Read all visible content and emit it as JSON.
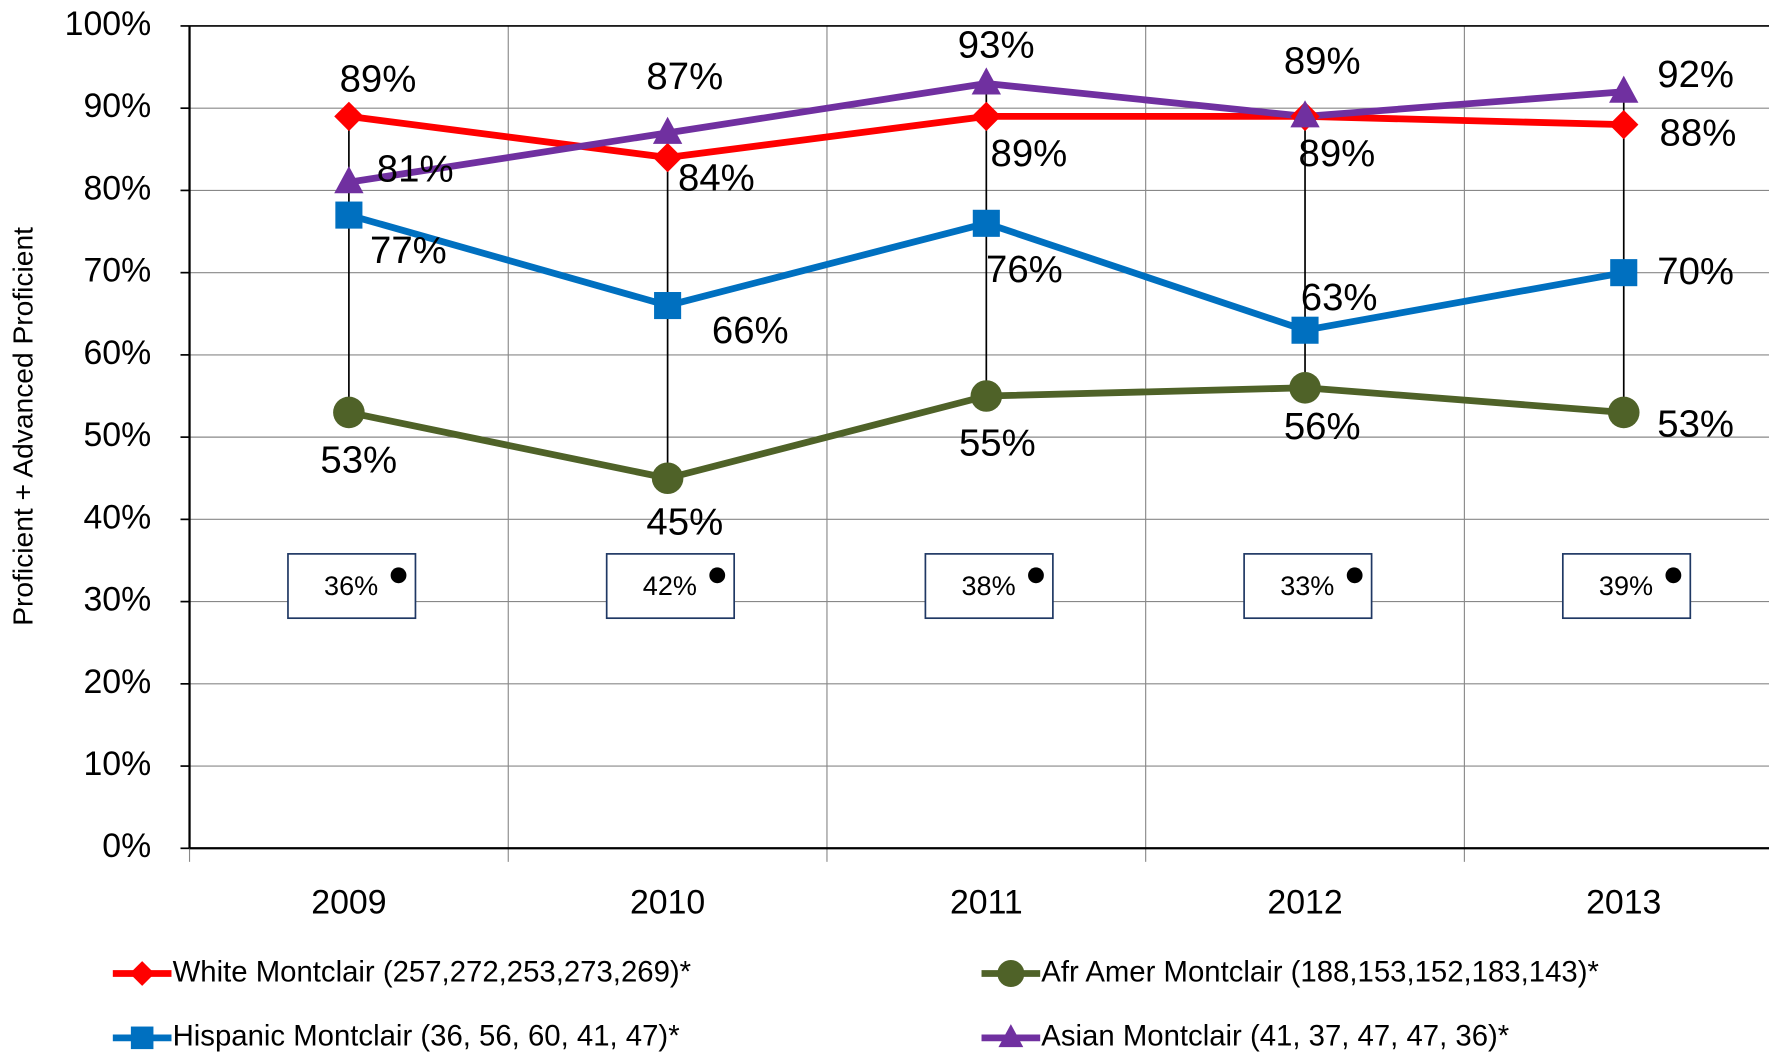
{
  "chart_data": {
    "type": "line",
    "y_axis_label": "Proficient + Advanced Proficient",
    "categories": [
      "2009",
      "2010",
      "2011",
      "2012",
      "2013"
    ],
    "ylim": [
      0,
      100
    ],
    "yticks": [
      {
        "value": 0,
        "label": "0%"
      },
      {
        "value": 10,
        "label": "10%"
      },
      {
        "value": 20,
        "label": "20%"
      },
      {
        "value": 30,
        "label": "30%"
      },
      {
        "value": 40,
        "label": "40%"
      },
      {
        "value": 50,
        "label": "50%"
      },
      {
        "value": 60,
        "label": "60%"
      },
      {
        "value": 70,
        "label": "70%"
      },
      {
        "value": 80,
        "label": "80%"
      },
      {
        "value": 90,
        "label": "90%"
      },
      {
        "value": 100,
        "label": "100%"
      }
    ],
    "grid": true,
    "series": [
      {
        "name": "White Montclair (257,272,253,273,269)*",
        "color": "#ff0000",
        "marker": "diamond",
        "values": [
          89,
          84,
          89,
          89,
          88
        ],
        "value_labels": [
          "89%",
          "84%",
          "89%",
          "89%",
          "88%"
        ]
      },
      {
        "name": "Afr Amer Montclair (188,153,152,183,143)*",
        "color": "#4f6228",
        "marker": "circle",
        "values": [
          53,
          45,
          55,
          56,
          53
        ],
        "value_labels": [
          "53%",
          "45%",
          "55%",
          "56%",
          "53%"
        ]
      },
      {
        "name": "Hispanic Montclair (36, 56, 60, 41, 47)*",
        "color": "#0070c0",
        "marker": "square",
        "values": [
          77,
          66,
          76,
          63,
          70
        ],
        "value_labels": [
          "77%",
          "66%",
          "76%",
          "63%",
          "70%"
        ]
      },
      {
        "name": "Asian Montclair (41, 37, 47, 47, 36)*",
        "color": "#7030a0",
        "marker": "triangle",
        "values": [
          81,
          87,
          93,
          89,
          92
        ],
        "value_labels": [
          "81%",
          "87%",
          "93%",
          "89%",
          "92%"
        ]
      }
    ],
    "annotations": [
      "36%",
      "42%",
      "38%",
      "33%",
      "39%"
    ]
  }
}
